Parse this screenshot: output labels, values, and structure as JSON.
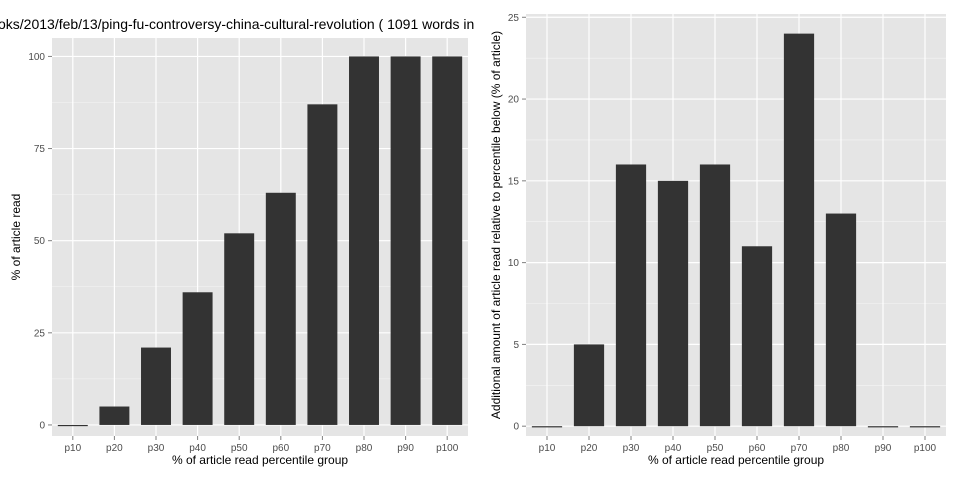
{
  "chart_data": [
    {
      "type": "bar",
      "title": "oks/2013/feb/13/ping-fu-controversy-china-cultural-revolution ( 1091 words in",
      "xlabel": "% of article read percentile group",
      "ylabel": "% of article read",
      "categories": [
        "p10",
        "p20",
        "p30",
        "p40",
        "p50",
        "p60",
        "p70",
        "p80",
        "p90",
        "p100"
      ],
      "values": [
        0,
        5,
        21,
        36,
        52,
        63,
        87,
        100,
        100,
        100
      ],
      "ylim": [
        -3,
        105
      ],
      "yticks": [
        0,
        25,
        50,
        75,
        100
      ],
      "ytick_labels": [
        "0",
        "25",
        "50",
        "75",
        "100"
      ],
      "grid": true,
      "bar_color": "#333333",
      "panel_bg": "#e5e5e5",
      "grid_color": "#ffffff"
    },
    {
      "type": "bar",
      "title": "",
      "xlabel": "% of article read percentile group",
      "ylabel": "Additional amount of article read relative to percentile below (% of article)",
      "categories": [
        "p10",
        "p20",
        "p30",
        "p40",
        "p50",
        "p60",
        "p70",
        "p80",
        "p90",
        "p100"
      ],
      "values": [
        0,
        5,
        16,
        15,
        16,
        11,
        24,
        13,
        0,
        0
      ],
      "ylim": [
        -0.6,
        25.2
      ],
      "yticks": [
        0,
        5,
        10,
        15,
        20,
        25
      ],
      "ytick_labels": [
        "0",
        "5",
        "10",
        "15",
        "20",
        "25"
      ],
      "grid": true,
      "bar_color": "#333333",
      "panel_bg": "#e5e5e5",
      "grid_color": "#ffffff"
    }
  ]
}
